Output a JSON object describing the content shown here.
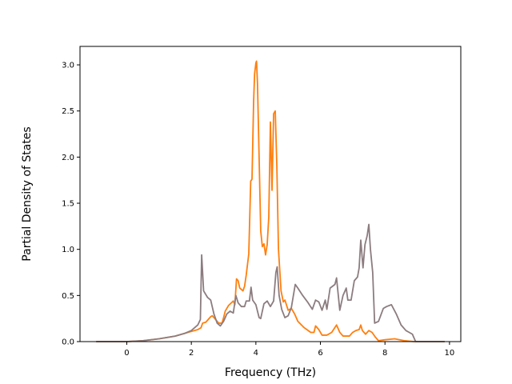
{
  "chart_data": {
    "type": "line",
    "title": "",
    "xlabel": "Frequency (THz)",
    "ylabel": "Partial Density of States",
    "xlim": [
      -1.45,
      10.35
    ],
    "ylim": [
      0.0,
      3.2
    ],
    "xticks": [
      0,
      2,
      4,
      6,
      8,
      10
    ],
    "yticks": [
      0.0,
      0.5,
      1.0,
      1.5,
      2.0,
      2.5,
      3.0
    ],
    "xtick_labels": [
      "0",
      "2",
      "4",
      "6",
      "8",
      "10"
    ],
    "ytick_labels": [
      "0.0",
      "0.5",
      "1.0",
      "1.5",
      "2.0",
      "2.5",
      "3.0"
    ],
    "grid": false,
    "legend": "none",
    "series": [
      {
        "color": "#ff7f0e",
        "points": [
          [
            -0.95,
            0.0
          ],
          [
            0.0,
            0.0
          ],
          [
            0.5,
            0.01
          ],
          [
            1.0,
            0.03
          ],
          [
            1.5,
            0.06
          ],
          [
            1.8,
            0.09
          ],
          [
            2.0,
            0.11
          ],
          [
            2.2,
            0.13
          ],
          [
            2.3,
            0.15
          ],
          [
            2.35,
            0.2
          ],
          [
            2.45,
            0.21
          ],
          [
            2.6,
            0.27
          ],
          [
            2.65,
            0.28
          ],
          [
            2.75,
            0.24
          ],
          [
            2.85,
            0.2
          ],
          [
            2.95,
            0.2
          ],
          [
            3.0,
            0.26
          ],
          [
            3.05,
            0.33
          ],
          [
            3.15,
            0.39
          ],
          [
            3.3,
            0.44
          ],
          [
            3.35,
            0.4
          ],
          [
            3.4,
            0.68
          ],
          [
            3.45,
            0.66
          ],
          [
            3.5,
            0.58
          ],
          [
            3.6,
            0.55
          ],
          [
            3.65,
            0.6
          ],
          [
            3.7,
            0.72
          ],
          [
            3.78,
            0.95
          ],
          [
            3.84,
            1.74
          ],
          [
            3.88,
            1.76
          ],
          [
            3.93,
            2.6
          ],
          [
            3.96,
            2.9
          ],
          [
            4.0,
            3.02
          ],
          [
            4.02,
            3.04
          ],
          [
            4.05,
            2.8
          ],
          [
            4.1,
            2.0
          ],
          [
            4.15,
            1.2
          ],
          [
            4.2,
            1.03
          ],
          [
            4.25,
            1.06
          ],
          [
            4.3,
            0.94
          ],
          [
            4.35,
            1.05
          ],
          [
            4.4,
            1.35
          ],
          [
            4.45,
            2.38
          ],
          [
            4.5,
            1.64
          ],
          [
            4.55,
            2.47
          ],
          [
            4.6,
            2.5
          ],
          [
            4.65,
            1.9
          ],
          [
            4.7,
            1.0
          ],
          [
            4.78,
            0.55
          ],
          [
            4.85,
            0.43
          ],
          [
            4.9,
            0.45
          ],
          [
            5.0,
            0.34
          ],
          [
            5.1,
            0.36
          ],
          [
            5.2,
            0.3
          ],
          [
            5.3,
            0.22
          ],
          [
            5.5,
            0.15
          ],
          [
            5.7,
            0.1
          ],
          [
            5.8,
            0.1
          ],
          [
            5.85,
            0.17
          ],
          [
            5.95,
            0.13
          ],
          [
            6.05,
            0.07
          ],
          [
            6.2,
            0.07
          ],
          [
            6.35,
            0.1
          ],
          [
            6.5,
            0.18
          ],
          [
            6.6,
            0.1
          ],
          [
            6.7,
            0.06
          ],
          [
            6.9,
            0.06
          ],
          [
            7.0,
            0.1
          ],
          [
            7.1,
            0.12
          ],
          [
            7.2,
            0.13
          ],
          [
            7.25,
            0.18
          ],
          [
            7.3,
            0.12
          ],
          [
            7.4,
            0.08
          ],
          [
            7.5,
            0.12
          ],
          [
            7.6,
            0.1
          ],
          [
            7.7,
            0.05
          ],
          [
            7.8,
            0.01
          ],
          [
            8.0,
            0.02
          ],
          [
            8.3,
            0.03
          ],
          [
            8.6,
            0.01
          ],
          [
            8.9,
            0.0
          ],
          [
            9.85,
            0.0
          ]
        ]
      },
      {
        "color": "#8c7c80",
        "points": [
          [
            -0.95,
            0.0
          ],
          [
            0.0,
            0.0
          ],
          [
            0.5,
            0.01
          ],
          [
            1.0,
            0.03
          ],
          [
            1.5,
            0.06
          ],
          [
            1.8,
            0.09
          ],
          [
            2.0,
            0.12
          ],
          [
            2.2,
            0.18
          ],
          [
            2.28,
            0.24
          ],
          [
            2.32,
            0.94
          ],
          [
            2.38,
            0.55
          ],
          [
            2.5,
            0.48
          ],
          [
            2.6,
            0.45
          ],
          [
            2.7,
            0.3
          ],
          [
            2.8,
            0.2
          ],
          [
            2.9,
            0.17
          ],
          [
            3.0,
            0.22
          ],
          [
            3.1,
            0.3
          ],
          [
            3.2,
            0.33
          ],
          [
            3.3,
            0.31
          ],
          [
            3.38,
            0.5
          ],
          [
            3.45,
            0.42
          ],
          [
            3.55,
            0.38
          ],
          [
            3.65,
            0.38
          ],
          [
            3.7,
            0.44
          ],
          [
            3.8,
            0.44
          ],
          [
            3.85,
            0.59
          ],
          [
            3.9,
            0.45
          ],
          [
            4.0,
            0.4
          ],
          [
            4.1,
            0.26
          ],
          [
            4.15,
            0.25
          ],
          [
            4.25,
            0.41
          ],
          [
            4.35,
            0.44
          ],
          [
            4.45,
            0.38
          ],
          [
            4.55,
            0.44
          ],
          [
            4.62,
            0.75
          ],
          [
            4.66,
            0.81
          ],
          [
            4.72,
            0.5
          ],
          [
            4.8,
            0.35
          ],
          [
            4.9,
            0.26
          ],
          [
            5.0,
            0.28
          ],
          [
            5.1,
            0.37
          ],
          [
            5.22,
            0.62
          ],
          [
            5.3,
            0.58
          ],
          [
            5.45,
            0.5
          ],
          [
            5.6,
            0.43
          ],
          [
            5.75,
            0.35
          ],
          [
            5.85,
            0.45
          ],
          [
            5.95,
            0.43
          ],
          [
            6.05,
            0.34
          ],
          [
            6.15,
            0.45
          ],
          [
            6.2,
            0.35
          ],
          [
            6.3,
            0.58
          ],
          [
            6.45,
            0.62
          ],
          [
            6.5,
            0.69
          ],
          [
            6.6,
            0.34
          ],
          [
            6.7,
            0.5
          ],
          [
            6.8,
            0.58
          ],
          [
            6.85,
            0.45
          ],
          [
            6.95,
            0.45
          ],
          [
            7.05,
            0.66
          ],
          [
            7.15,
            0.7
          ],
          [
            7.2,
            0.8
          ],
          [
            7.25,
            1.1
          ],
          [
            7.32,
            0.8
          ],
          [
            7.38,
            1.05
          ],
          [
            7.45,
            1.15
          ],
          [
            7.5,
            1.27
          ],
          [
            7.55,
            1.0
          ],
          [
            7.62,
            0.75
          ],
          [
            7.68,
            0.2
          ],
          [
            7.8,
            0.22
          ],
          [
            7.95,
            0.36
          ],
          [
            8.05,
            0.38
          ],
          [
            8.2,
            0.4
          ],
          [
            8.35,
            0.3
          ],
          [
            8.5,
            0.18
          ],
          [
            8.65,
            0.12
          ],
          [
            8.85,
            0.08
          ],
          [
            8.95,
            0.0
          ],
          [
            9.85,
            0.0
          ]
        ]
      }
    ]
  }
}
